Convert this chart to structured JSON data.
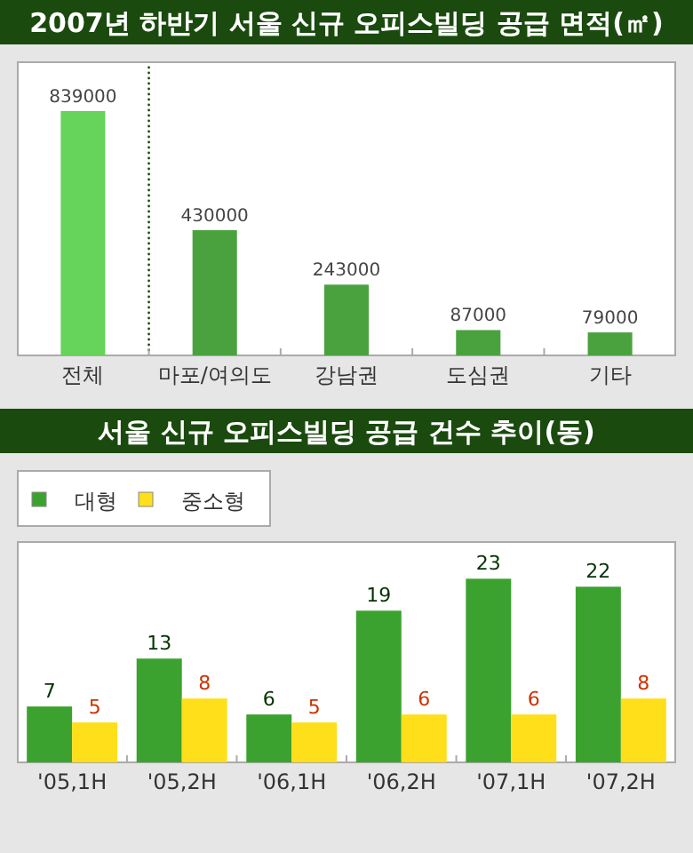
{
  "chart_data": [
    {
      "type": "bar",
      "title": "2007년 하반기 서울 신규 오피스빌딩 공급 면적(㎡)",
      "categories": [
        "전체",
        "마포/여의도",
        "강남권",
        "도심권",
        "기타"
      ],
      "values": [
        839000,
        430000,
        243000,
        87000,
        79000
      ],
      "colors": [
        "#66d35a",
        "#4aa23e",
        "#4aa23e",
        "#4aa23e",
        "#4aa23e"
      ],
      "data_labels": true
    },
    {
      "type": "bar",
      "title": "서울 신규 오피스빌딩 공급 건수 추이(동)",
      "categories": [
        "'05,1H",
        "'05,2H",
        "'06,1H",
        "'06,2H",
        "'07,1H",
        "'07,2H"
      ],
      "series": [
        {
          "name": "대형",
          "color": "#3ca22f",
          "values": [
            7,
            13,
            6,
            19,
            23,
            22
          ]
        },
        {
          "name": "중소형",
          "color": "#ffde1a",
          "values": [
            5,
            8,
            5,
            6,
            6,
            8
          ]
        }
      ],
      "data_labels": true,
      "legend": "top left"
    }
  ]
}
